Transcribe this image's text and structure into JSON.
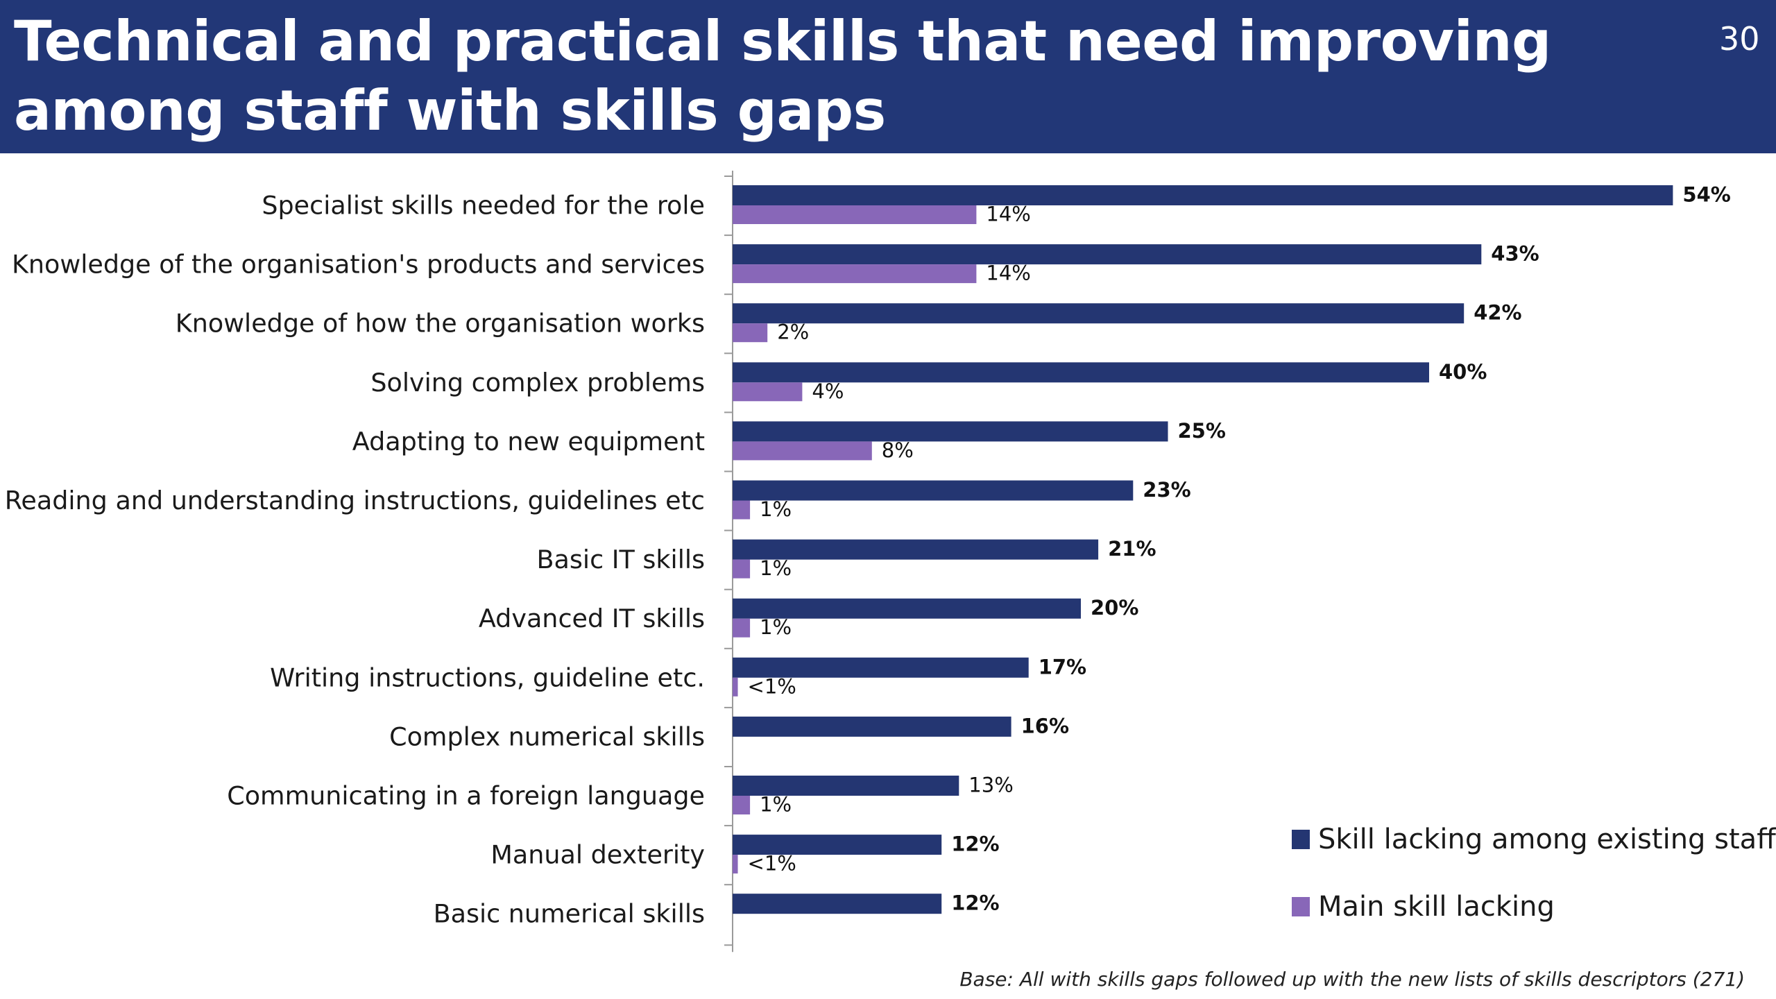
{
  "slide": {
    "title": "Technical and practical skills that need improving among staff with skills gaps",
    "number": "30",
    "base_note": "Base: All with skills gaps followed up with the new lists of skills descriptors (271)"
  },
  "colors": {
    "header_bg": "#223777",
    "series_existing": "#243672",
    "series_main": "#8867b8"
  },
  "chart_data": {
    "type": "bar",
    "orientation": "horizontal",
    "categories": [
      "Specialist skills needed for the role",
      "Knowledge of the organisation's products and services",
      "Knowledge of how the organisation works",
      "Solving complex problems",
      "Adapting to new equipment",
      "Reading and understanding instructions, guidelines etc",
      "Basic IT skills",
      "Advanced IT skills",
      "Writing instructions, guideline etc.",
      "Complex numerical skills",
      "Communicating in a foreign language",
      "Manual dexterity",
      "Basic numerical skills"
    ],
    "series": [
      {
        "name": "Skill lacking among existing staff",
        "color": "#243672",
        "values": [
          54,
          43,
          42,
          40,
          25,
          23,
          21,
          20,
          17,
          16,
          13,
          12,
          12
        ],
        "labels": [
          "54%",
          "43%",
          "42%",
          "40%",
          "25%",
          "23%",
          "21%",
          "20%",
          "17%",
          "16%",
          "13%",
          "12%",
          "12%"
        ]
      },
      {
        "name": "Main skill lacking",
        "color": "#8867b8",
        "values": [
          14,
          14,
          2,
          4,
          8,
          1,
          1,
          1,
          0.3,
          null,
          1,
          0.3,
          null
        ],
        "labels": [
          "14%",
          "14%",
          "2%",
          "4%",
          "8%",
          "1%",
          "1%",
          "1%",
          "<1%",
          "",
          "1%",
          "<1%",
          ""
        ]
      }
    ],
    "xlim": [
      0,
      60
    ],
    "grid": false,
    "legend_position": "bottom-right"
  }
}
